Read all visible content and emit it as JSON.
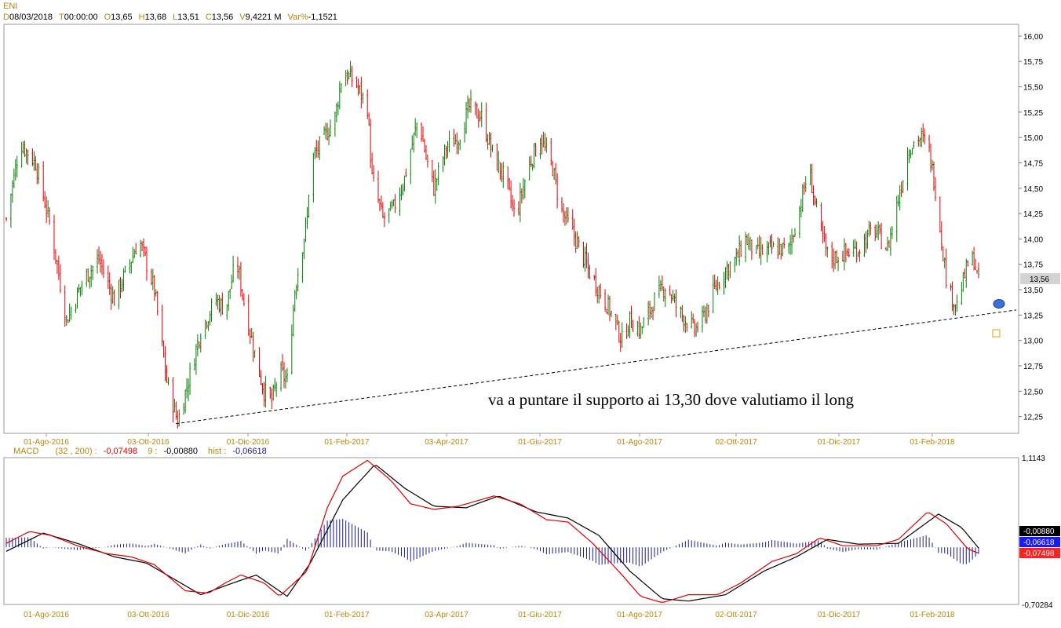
{
  "instrument": "ENI",
  "header": [
    {
      "key": "D",
      "value": "08/03/2018"
    },
    {
      "key": "T",
      "value": "00:00:00"
    },
    {
      "key": "O",
      "value": "13,65"
    },
    {
      "key": "H",
      "value": "13,68"
    },
    {
      "key": "L",
      "value": "13,51"
    },
    {
      "key": "C",
      "value": "13,56"
    },
    {
      "key": "V",
      "value": "9,4221 M"
    },
    {
      "key": "Var%",
      "value": "-1,1521"
    }
  ],
  "colors": {
    "up": "#008000",
    "down": "#e00000",
    "macd": "#e00000",
    "signal": "#000000",
    "hist": "#1a1a8c",
    "label_key": "#b8860b",
    "grid": "#bbbbbb"
  },
  "chart_data": [
    {
      "type": "candlestick",
      "title": "ENI",
      "price_axis": {
        "ticks": [
          "16,00",
          "15,75",
          "15,50",
          "15,25",
          "15,00",
          "14,75",
          "14,50",
          "14,25",
          "14,00",
          "13,75",
          "13,50",
          "13,25",
          "13,00",
          "12,75",
          "12,50",
          "12,25"
        ],
        "ylim": [
          12.1,
          16.1
        ]
      },
      "x_ticks": [
        "01-Ago-2016",
        "03-Ott-2016",
        "01-Dic-2016",
        "01-Feb-2017",
        "03-Apr-2017",
        "01-Giu-2017",
        "01-Ago-2017",
        "02-Ott-2017",
        "01-Dic-2017",
        "01-Feb-2018"
      ],
      "x_range": [
        "2016-06-16",
        "2018-03-08"
      ],
      "last_close_label": "13,56",
      "close_path": [
        [
          "2016-06-16",
          14.2
        ],
        [
          "2016-06-25",
          14.95
        ],
        [
          "2016-07-05",
          14.75
        ],
        [
          "2016-07-15",
          14.1
        ],
        [
          "2016-07-25",
          13.2
        ],
        [
          "2016-08-05",
          13.6
        ],
        [
          "2016-08-15",
          13.8
        ],
        [
          "2016-08-25",
          13.4
        ],
        [
          "2016-09-05",
          13.8
        ],
        [
          "2016-09-10",
          14.0
        ],
        [
          "2016-09-20",
          13.5
        ],
        [
          "2016-09-28",
          12.6
        ],
        [
          "2016-10-05",
          12.2
        ],
        [
          "2016-10-12",
          12.6
        ],
        [
          "2016-10-20",
          13.1
        ],
        [
          "2016-10-30",
          13.4
        ],
        [
          "2016-11-05",
          13.3
        ],
        [
          "2016-11-12",
          13.8
        ],
        [
          "2016-11-18",
          13.3
        ],
        [
          "2016-11-25",
          12.8
        ],
        [
          "2016-11-30",
          12.5
        ],
        [
          "2016-12-05",
          12.4
        ],
        [
          "2016-12-10",
          12.7
        ],
        [
          "2016-12-15",
          12.6
        ],
        [
          "2016-12-20",
          13.5
        ],
        [
          "2016-12-28",
          14.2
        ],
        [
          "2016-12-30",
          14.75
        ],
        [
          "2017-01-08",
          15.0
        ],
        [
          "2017-01-15",
          15.2
        ],
        [
          "2017-01-20",
          15.65
        ],
        [
          "2017-01-28",
          15.55
        ],
        [
          "2017-02-05",
          15.3
        ],
        [
          "2017-02-08",
          14.6
        ],
        [
          "2017-02-15",
          14.2
        ],
        [
          "2017-02-22",
          14.3
        ],
        [
          "2017-03-01",
          14.6
        ],
        [
          "2017-03-10",
          15.2
        ],
        [
          "2017-03-15",
          14.8
        ],
        [
          "2017-03-20",
          14.5
        ],
        [
          "2017-03-28",
          14.9
        ],
        [
          "2017-04-05",
          15.0
        ],
        [
          "2017-04-12",
          15.3
        ],
        [
          "2017-04-20",
          15.2
        ],
        [
          "2017-04-28",
          14.8
        ],
        [
          "2017-05-05",
          14.6
        ],
        [
          "2017-05-12",
          14.2
        ],
        [
          "2017-05-20",
          14.7
        ],
        [
          "2017-05-28",
          15.0
        ],
        [
          "2017-06-05",
          14.7
        ],
        [
          "2017-06-10",
          14.3
        ],
        [
          "2017-06-20",
          14.0
        ],
        [
          "2017-06-28",
          13.7
        ],
        [
          "2017-07-05",
          13.5
        ],
        [
          "2017-07-12",
          13.3
        ],
        [
          "2017-07-20",
          13.0
        ],
        [
          "2017-07-25",
          13.2
        ],
        [
          "2017-08-01",
          13.1
        ],
        [
          "2017-08-10",
          13.4
        ],
        [
          "2017-08-18",
          13.55
        ],
        [
          "2017-08-25",
          13.3
        ],
        [
          "2017-09-05",
          13.1
        ],
        [
          "2017-09-10",
          13.2
        ],
        [
          "2017-09-18",
          13.5
        ],
        [
          "2017-09-25",
          13.7
        ],
        [
          "2017-10-02",
          13.8
        ],
        [
          "2017-10-08",
          14.0
        ],
        [
          "2017-10-15",
          13.85
        ],
        [
          "2017-10-25",
          13.9
        ],
        [
          "2017-11-05",
          13.9
        ],
        [
          "2017-11-12",
          14.3
        ],
        [
          "2017-11-18",
          14.7
        ],
        [
          "2017-11-25",
          14.1
        ],
        [
          "2017-12-01",
          13.8
        ],
        [
          "2017-12-10",
          13.85
        ],
        [
          "2017-12-20",
          13.9
        ],
        [
          "2017-12-30",
          14.1
        ],
        [
          "2018-01-08",
          13.9
        ],
        [
          "2018-01-15",
          14.4
        ],
        [
          "2018-01-22",
          14.9
        ],
        [
          "2018-01-28",
          15.0
        ],
        [
          "2018-02-03",
          14.95
        ],
        [
          "2018-02-08",
          14.5
        ],
        [
          "2018-02-12",
          14.0
        ],
        [
          "2018-02-16",
          13.5
        ],
        [
          "2018-02-22",
          13.35
        ],
        [
          "2018-03-01",
          13.75
        ],
        [
          "2018-03-05",
          13.8
        ],
        [
          "2018-03-08",
          13.56
        ]
      ],
      "trendline": {
        "from": [
          "2016-10-04",
          12.18
        ],
        "to": [
          "2018-03-16",
          13.3
        ]
      },
      "annotation": "va a puntare il supporto ai 13,30 dove valutiamo il long"
    },
    {
      "type": "macd",
      "name": "MACD",
      "params": "(32 , 200) :",
      "macd_value": "-0,07498",
      "signal_label": "9 :",
      "signal_value": "-0,00880",
      "hist_label": "hist :",
      "hist_value": "-0,06618",
      "axis_top": "1,1143",
      "axis_bottom": "-0,70284",
      "ylim": [
        -0.70284,
        1.1143
      ],
      "x_ticks": [
        "01-Ago-2016",
        "03-Ott-2016",
        "01-Dic-2016",
        "01-Feb-2017",
        "03-Apr-2017",
        "01-Giu-2017",
        "01-Ago-2017",
        "02-Ott-2017",
        "01-Dic-2017",
        "01-Feb-2018"
      ],
      "macd_path": [
        [
          "2016-06-16",
          0.05
        ],
        [
          "2016-07-01",
          0.2
        ],
        [
          "2016-07-15",
          0.15
        ],
        [
          "2016-08-01",
          0.02
        ],
        [
          "2016-08-20",
          -0.08
        ],
        [
          "2016-09-05",
          -0.12
        ],
        [
          "2016-09-20",
          -0.22
        ],
        [
          "2016-10-10",
          -0.55
        ],
        [
          "2016-10-25",
          -0.58
        ],
        [
          "2016-11-05",
          -0.45
        ],
        [
          "2016-11-15",
          -0.35
        ],
        [
          "2016-11-30",
          -0.45
        ],
        [
          "2016-12-10",
          -0.62
        ],
        [
          "2016-12-28",
          -0.3
        ],
        [
          "2017-01-10",
          0.5
        ],
        [
          "2017-01-20",
          0.9
        ],
        [
          "2017-02-05",
          1.1
        ],
        [
          "2017-02-20",
          0.85
        ],
        [
          "2017-03-05",
          0.55
        ],
        [
          "2017-03-20",
          0.48
        ],
        [
          "2017-04-05",
          0.52
        ],
        [
          "2017-04-28",
          0.65
        ],
        [
          "2017-05-15",
          0.55
        ],
        [
          "2017-06-01",
          0.35
        ],
        [
          "2017-06-15",
          0.32
        ],
        [
          "2017-07-01",
          0.05
        ],
        [
          "2017-07-20",
          -0.35
        ],
        [
          "2017-08-01",
          -0.62
        ],
        [
          "2017-08-15",
          -0.7
        ],
        [
          "2017-09-01",
          -0.6
        ],
        [
          "2017-09-20",
          -0.6
        ],
        [
          "2017-10-05",
          -0.45
        ],
        [
          "2017-10-25",
          -0.18
        ],
        [
          "2017-11-10",
          -0.08
        ],
        [
          "2017-11-25",
          0.12
        ],
        [
          "2017-12-10",
          0.02
        ],
        [
          "2018-01-01",
          0.02
        ],
        [
          "2018-01-15",
          0.1
        ],
        [
          "2018-02-03",
          0.45
        ],
        [
          "2018-02-15",
          0.3
        ],
        [
          "2018-03-01",
          -0.02
        ],
        [
          "2018-03-08",
          -0.07498
        ]
      ],
      "signal_path": [
        [
          "2016-06-16",
          -0.05
        ],
        [
          "2016-07-10",
          0.18
        ],
        [
          "2016-08-01",
          0.05
        ],
        [
          "2016-08-25",
          -0.12
        ],
        [
          "2016-09-15",
          -0.2
        ],
        [
          "2016-10-20",
          -0.6
        ],
        [
          "2016-11-10",
          -0.45
        ],
        [
          "2016-11-25",
          -0.35
        ],
        [
          "2016-12-15",
          -0.62
        ],
        [
          "2016-12-30",
          -0.2
        ],
        [
          "2017-01-20",
          0.6
        ],
        [
          "2017-02-10",
          1.05
        ],
        [
          "2017-03-01",
          0.75
        ],
        [
          "2017-03-20",
          0.52
        ],
        [
          "2017-04-10",
          0.5
        ],
        [
          "2017-05-01",
          0.65
        ],
        [
          "2017-05-25",
          0.45
        ],
        [
          "2017-06-15",
          0.37
        ],
        [
          "2017-07-05",
          0.15
        ],
        [
          "2017-07-25",
          -0.3
        ],
        [
          "2017-08-15",
          -0.65
        ],
        [
          "2017-09-01",
          -0.68
        ],
        [
          "2017-09-25",
          -0.6
        ],
        [
          "2017-10-20",
          -0.3
        ],
        [
          "2017-11-10",
          -0.12
        ],
        [
          "2017-11-30",
          0.1
        ],
        [
          "2017-12-20",
          0.04
        ],
        [
          "2018-01-15",
          0.05
        ],
        [
          "2018-02-10",
          0.42
        ],
        [
          "2018-02-25",
          0.25
        ],
        [
          "2018-03-08",
          -0.0088
        ]
      ]
    }
  ]
}
